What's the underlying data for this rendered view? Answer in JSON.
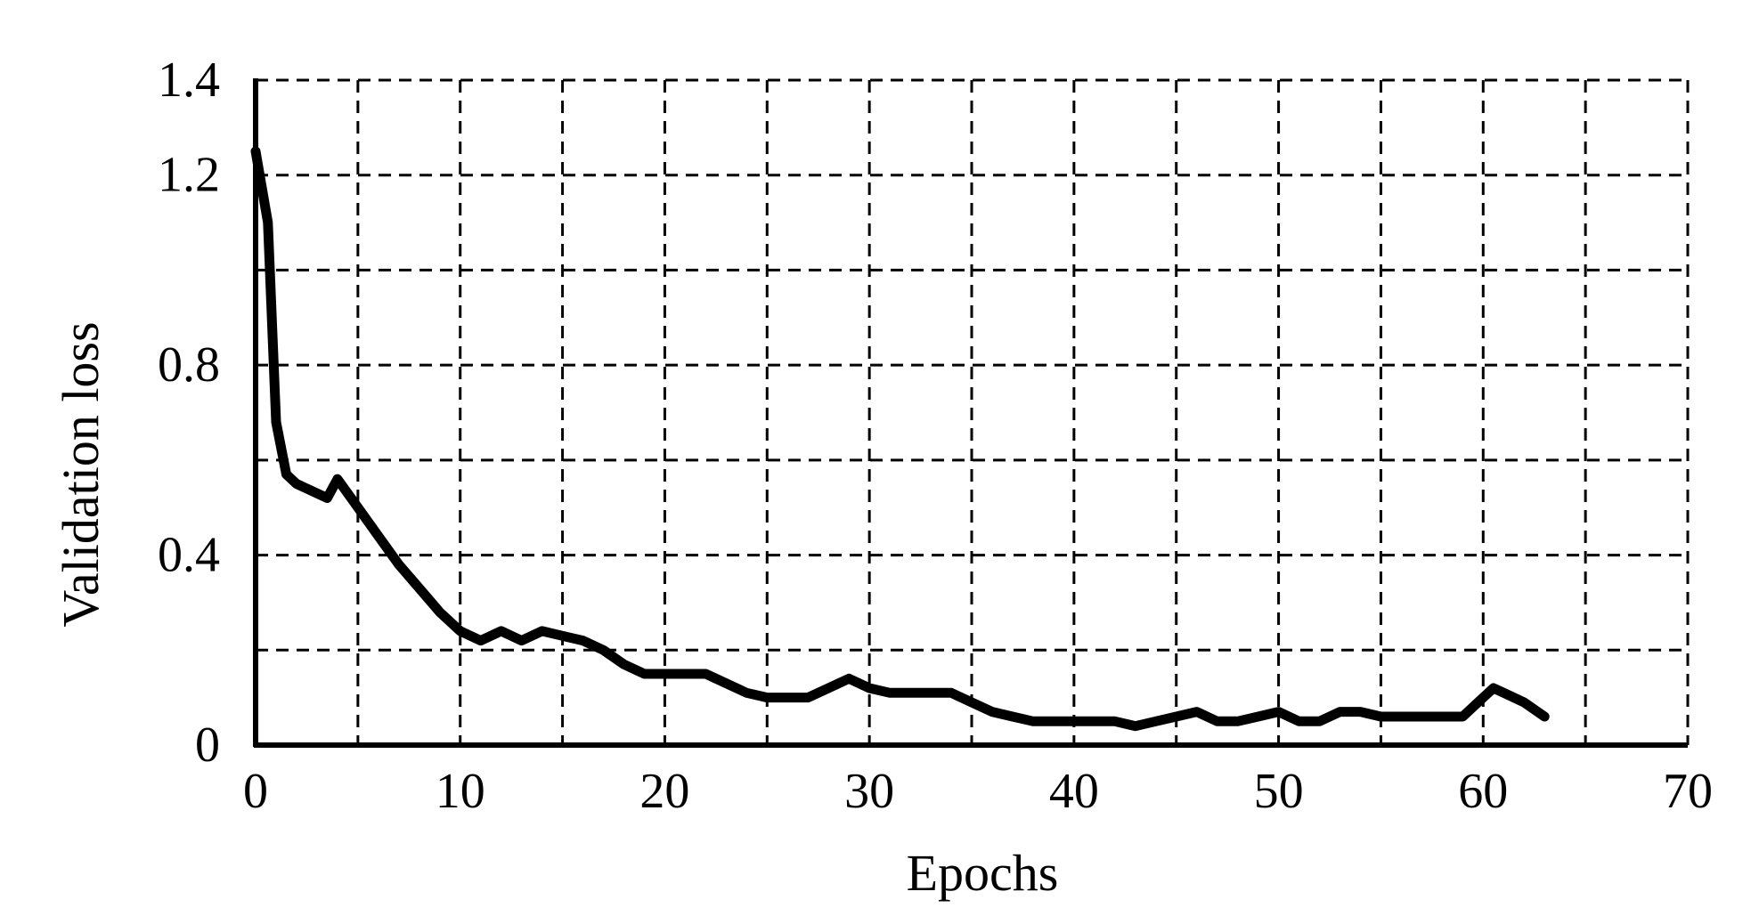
{
  "chart_data": {
    "type": "line",
    "xlabel": "Epochs",
    "ylabel": "Validation loss",
    "xlim": [
      0,
      70
    ],
    "ylim": [
      0,
      1.4
    ],
    "x_ticks": [
      0,
      10,
      20,
      30,
      40,
      50,
      60,
      70
    ],
    "x_tick_labels": [
      "0",
      "10",
      "20",
      "30",
      "40",
      "50",
      "60",
      "70"
    ],
    "y_ticks": [
      0,
      0.4,
      0.8,
      1.2,
      1.4
    ],
    "y_tick_labels": [
      "0",
      "0.4",
      "0.8",
      "1.2",
      "1.4"
    ],
    "x_grid_step": 5,
    "y_grid_step": 0.2,
    "grid": true,
    "grid_style": "dashed",
    "line_color": "#000000",
    "series": [
      {
        "x": [
          0,
          0.6,
          1,
          1.5,
          2,
          3.5,
          4,
          5,
          6,
          7,
          8,
          9,
          10,
          11,
          12,
          13,
          14,
          15,
          16,
          17,
          18,
          19,
          20,
          21,
          22,
          23,
          24,
          25,
          26,
          27,
          28,
          29,
          30,
          31,
          32,
          33,
          34,
          35,
          36,
          37,
          38,
          39,
          40,
          41,
          42,
          43,
          44,
          45,
          46,
          47,
          48,
          49,
          50,
          51,
          52,
          53,
          54,
          55,
          56,
          57,
          58,
          59,
          60,
          60.5,
          61,
          62,
          63
        ],
        "y": [
          1.25,
          1.1,
          0.68,
          0.57,
          0.55,
          0.52,
          0.56,
          0.5,
          0.44,
          0.38,
          0.33,
          0.28,
          0.24,
          0.22,
          0.24,
          0.22,
          0.24,
          0.23,
          0.22,
          0.2,
          0.17,
          0.15,
          0.15,
          0.15,
          0.15,
          0.13,
          0.11,
          0.1,
          0.1,
          0.1,
          0.12,
          0.14,
          0.12,
          0.11,
          0.11,
          0.11,
          0.11,
          0.09,
          0.07,
          0.06,
          0.05,
          0.05,
          0.05,
          0.05,
          0.05,
          0.04,
          0.05,
          0.06,
          0.07,
          0.05,
          0.05,
          0.06,
          0.07,
          0.05,
          0.05,
          0.07,
          0.07,
          0.06,
          0.06,
          0.06,
          0.06,
          0.06,
          0.1,
          0.12,
          0.11,
          0.09,
          0.06
        ]
      }
    ]
  }
}
